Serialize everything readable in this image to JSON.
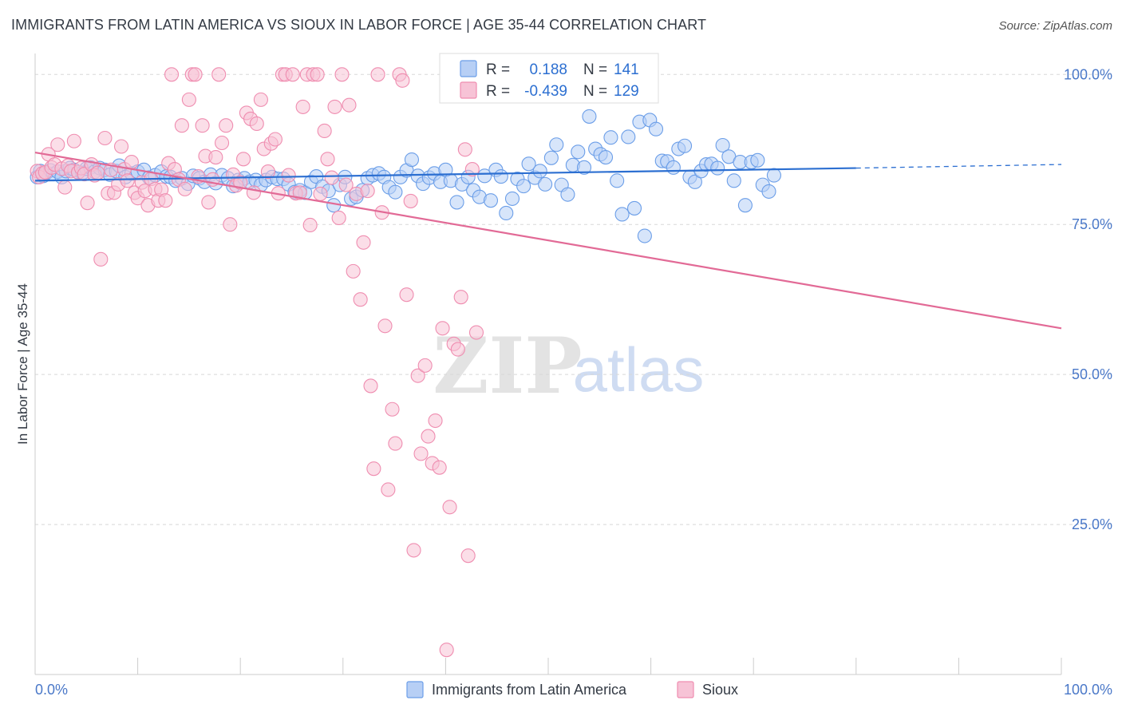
{
  "title": "IMMIGRANTS FROM LATIN AMERICA VS SIOUX IN LABOR FORCE | AGE 35-44 CORRELATION CHART",
  "source": "Source: ZipAtlas.com",
  "watermark": {
    "zip": "ZIP",
    "atlas": "atlas"
  },
  "colors": {
    "blue": "#6b9ee8",
    "blue_fill": "#b7cff5",
    "blue_line": "#2c6fd1",
    "pink": "#ef8db0",
    "pink_fill": "#f7c3d6",
    "pink_line": "#e26a96",
    "tick_text": "#4a78c8",
    "grid": "#d8d8d8"
  },
  "legend": {
    "rows": [
      {
        "r_label": "R =",
        "r_value": "0.188",
        "n_label": "N =",
        "n_value": "141"
      },
      {
        "r_label": "R =",
        "r_value": "-0.439",
        "n_label": "N =",
        "n_value": "129"
      }
    ]
  },
  "chart_data": {
    "type": "scatter",
    "title": "IMMIGRANTS FROM LATIN AMERICA VS SIOUX IN LABOR FORCE | AGE 35-44 CORRELATION CHART",
    "xlabel": "",
    "ylabel": "In Labor Force | Age 35-44",
    "xlim": [
      0,
      100
    ],
    "ylim": [
      0,
      103.5
    ],
    "x_tick_labels": [
      "0.0%",
      "100.0%"
    ],
    "y_ticks": [
      25,
      50,
      75,
      100
    ],
    "y_tick_labels": [
      "25.0%",
      "50.0%",
      "75.0%",
      "100.0%"
    ],
    "grid": "horizontal dashed",
    "legend_position": "top-center",
    "series": [
      {
        "name": "Immigrants from Latin America",
        "color": "#6b9ee8",
        "r": 0.188,
        "n": 141,
        "trend": {
          "x0": 0,
          "y0": 82.3,
          "x1": 80,
          "y1": 84.4,
          "dashed_to": [
            100,
            85.0
          ]
        },
        "points": [
          [
            0.2,
            82.9
          ],
          [
            0.5,
            83.9
          ],
          [
            0.8,
            83.1
          ],
          [
            1.1,
            83.6
          ],
          [
            1.5,
            84.0
          ],
          [
            1.8,
            83.4
          ],
          [
            2.2,
            83.8
          ],
          [
            2.6,
            82.9
          ],
          [
            3.0,
            83.9
          ],
          [
            3.4,
            84.4
          ],
          [
            3.8,
            84.1
          ],
          [
            4.2,
            83.7
          ],
          [
            4.6,
            83.6
          ],
          [
            5.0,
            84.3
          ],
          [
            5.4,
            84.5
          ],
          [
            5.8,
            83.8
          ],
          [
            6.3,
            84.4
          ],
          [
            6.8,
            84.1
          ],
          [
            7.3,
            83.3
          ],
          [
            7.9,
            83.9
          ],
          [
            8.2,
            84.8
          ],
          [
            8.8,
            82.9
          ],
          [
            9.4,
            83.5
          ],
          [
            10.0,
            83.8
          ],
          [
            10.6,
            84.1
          ],
          [
            11.1,
            82.8
          ],
          [
            11.7,
            83.2
          ],
          [
            12.3,
            83.8
          ],
          [
            12.8,
            83.0
          ],
          [
            13.2,
            82.9
          ],
          [
            13.7,
            82.3
          ],
          [
            14.3,
            82.7
          ],
          [
            14.9,
            81.8
          ],
          [
            15.4,
            83.1
          ],
          [
            16.0,
            82.7
          ],
          [
            16.5,
            82.1
          ],
          [
            17.1,
            83.3
          ],
          [
            17.6,
            81.9
          ],
          [
            18.2,
            83.2
          ],
          [
            18.8,
            82.7
          ],
          [
            19.3,
            81.4
          ],
          [
            19.8,
            82.4
          ],
          [
            20.4,
            82.7
          ],
          [
            20.9,
            82.1
          ],
          [
            21.5,
            82.4
          ],
          [
            22.0,
            81.6
          ],
          [
            22.5,
            82.4
          ],
          [
            23.1,
            82.9
          ],
          [
            23.6,
            82.6
          ],
          [
            24.2,
            82.6
          ],
          [
            24.7,
            81.7
          ],
          [
            25.3,
            80.4
          ],
          [
            25.8,
            80.7
          ],
          [
            26.3,
            80.3
          ],
          [
            26.9,
            82.1
          ],
          [
            27.4,
            83.0
          ],
          [
            28.0,
            81.3
          ],
          [
            28.6,
            80.6
          ],
          [
            29.1,
            78.2
          ],
          [
            29.7,
            81.6
          ],
          [
            30.2,
            82.9
          ],
          [
            30.8,
            79.3
          ],
          [
            31.3,
            79.6
          ],
          [
            31.9,
            80.7
          ],
          [
            32.4,
            82.7
          ],
          [
            32.9,
            83.2
          ],
          [
            33.5,
            83.5
          ],
          [
            34.0,
            82.9
          ],
          [
            34.5,
            81.2
          ],
          [
            35.1,
            80.4
          ],
          [
            35.6,
            82.9
          ],
          [
            36.2,
            84.0
          ],
          [
            36.7,
            85.8
          ],
          [
            37.3,
            83.1
          ],
          [
            37.8,
            81.8
          ],
          [
            38.4,
            82.8
          ],
          [
            38.9,
            83.5
          ],
          [
            39.5,
            82.1
          ],
          [
            40.0,
            84.1
          ],
          [
            40.5,
            82.3
          ],
          [
            41.1,
            78.7
          ],
          [
            41.6,
            81.7
          ],
          [
            42.2,
            82.9
          ],
          [
            42.7,
            80.7
          ],
          [
            43.3,
            79.6
          ],
          [
            43.8,
            83.1
          ],
          [
            44.4,
            79.0
          ],
          [
            44.9,
            84.1
          ],
          [
            45.4,
            83.0
          ],
          [
            45.9,
            76.9
          ],
          [
            46.5,
            79.3
          ],
          [
            47.0,
            82.6
          ],
          [
            47.6,
            81.4
          ],
          [
            48.1,
            85.1
          ],
          [
            48.7,
            82.8
          ],
          [
            49.2,
            83.9
          ],
          [
            49.7,
            81.7
          ],
          [
            50.3,
            86.1
          ],
          [
            50.8,
            88.3
          ],
          [
            51.3,
            81.6
          ],
          [
            51.9,
            80.0
          ],
          [
            52.4,
            84.9
          ],
          [
            52.9,
            87.1
          ],
          [
            53.5,
            84.5
          ],
          [
            54.0,
            93.0
          ],
          [
            54.6,
            87.6
          ],
          [
            55.1,
            86.7
          ],
          [
            55.6,
            86.2
          ],
          [
            56.1,
            89.5
          ],
          [
            56.7,
            82.3
          ],
          [
            57.2,
            76.7
          ],
          [
            57.8,
            89.6
          ],
          [
            58.4,
            77.7
          ],
          [
            58.9,
            92.1
          ],
          [
            59.4,
            73.1
          ],
          [
            59.9,
            92.4
          ],
          [
            60.5,
            90.9
          ],
          [
            61.1,
            85.6
          ],
          [
            61.6,
            85.5
          ],
          [
            62.2,
            84.5
          ],
          [
            62.7,
            87.6
          ],
          [
            63.3,
            88.1
          ],
          [
            63.8,
            82.9
          ],
          [
            64.3,
            82.1
          ],
          [
            64.9,
            83.9
          ],
          [
            65.4,
            85.0
          ],
          [
            65.9,
            85.1
          ],
          [
            66.5,
            84.4
          ],
          [
            67.0,
            88.2
          ],
          [
            67.6,
            86.3
          ],
          [
            68.1,
            82.3
          ],
          [
            68.7,
            85.4
          ],
          [
            69.2,
            78.2
          ],
          [
            69.8,
            85.4
          ],
          [
            70.4,
            85.7
          ],
          [
            70.9,
            81.6
          ],
          [
            71.5,
            80.5
          ],
          [
            72.0,
            83.2
          ]
        ]
      },
      {
        "name": "Sioux",
        "color": "#ef8db0",
        "r": -0.439,
        "n": 129,
        "trend": {
          "x0": 0,
          "y0": 87.0,
          "x1": 100,
          "y1": 57.7
        },
        "points": [
          [
            0.2,
            83.9
          ],
          [
            0.4,
            82.9
          ],
          [
            0.7,
            83.5
          ],
          [
            1.0,
            83.7
          ],
          [
            1.3,
            86.7
          ],
          [
            1.6,
            84.5
          ],
          [
            1.9,
            85.0
          ],
          [
            2.2,
            88.3
          ],
          [
            2.6,
            84.3
          ],
          [
            2.9,
            81.2
          ],
          [
            3.2,
            84.8
          ],
          [
            3.5,
            83.9
          ],
          [
            3.8,
            88.9
          ],
          [
            4.2,
            83.7
          ],
          [
            4.5,
            84.4
          ],
          [
            4.8,
            83.4
          ],
          [
            5.1,
            78.6
          ],
          [
            5.5,
            85.0
          ],
          [
            5.8,
            83.2
          ],
          [
            6.1,
            83.6
          ],
          [
            6.4,
            69.2
          ],
          [
            6.8,
            89.4
          ],
          [
            7.1,
            80.2
          ],
          [
            7.4,
            84.1
          ],
          [
            7.7,
            80.3
          ],
          [
            8.1,
            81.7
          ],
          [
            8.4,
            88.0
          ],
          [
            8.7,
            84.2
          ],
          [
            9.0,
            82.3
          ],
          [
            9.4,
            85.4
          ],
          [
            9.7,
            80.3
          ],
          [
            10.0,
            79.4
          ],
          [
            10.4,
            82.0
          ],
          [
            10.7,
            80.6
          ],
          [
            11.0,
            78.2
          ],
          [
            11.3,
            82.6
          ],
          [
            11.7,
            80.9
          ],
          [
            12.0,
            79.0
          ],
          [
            12.3,
            80.8
          ],
          [
            12.7,
            79.0
          ],
          [
            13.0,
            85.2
          ],
          [
            13.3,
            100.0
          ],
          [
            13.6,
            84.2
          ],
          [
            14.0,
            82.5
          ],
          [
            14.3,
            91.5
          ],
          [
            14.6,
            80.9
          ],
          [
            15.0,
            95.8
          ],
          [
            15.3,
            100.0
          ],
          [
            15.6,
            100.0
          ],
          [
            15.9,
            83.0
          ],
          [
            16.3,
            91.5
          ],
          [
            16.6,
            86.4
          ],
          [
            16.9,
            78.7
          ],
          [
            17.3,
            82.5
          ],
          [
            17.6,
            86.2
          ],
          [
            17.9,
            100.0
          ],
          [
            18.2,
            88.6
          ],
          [
            18.6,
            91.5
          ],
          [
            19.0,
            75.0
          ],
          [
            19.3,
            83.3
          ],
          [
            19.6,
            81.5
          ],
          [
            20.0,
            82.0
          ],
          [
            20.3,
            85.9
          ],
          [
            20.6,
            93.6
          ],
          [
            21.0,
            92.6
          ],
          [
            21.3,
            80.3
          ],
          [
            21.6,
            91.8
          ],
          [
            22.0,
            95.8
          ],
          [
            22.3,
            87.6
          ],
          [
            22.7,
            83.8
          ],
          [
            23.0,
            88.5
          ],
          [
            23.4,
            89.2
          ],
          [
            23.7,
            80.2
          ],
          [
            24.1,
            100.0
          ],
          [
            24.4,
            100.0
          ],
          [
            24.7,
            83.2
          ],
          [
            25.1,
            100.0
          ],
          [
            25.4,
            80.2
          ],
          [
            25.8,
            80.3
          ],
          [
            26.1,
            94.6
          ],
          [
            26.5,
            100.0
          ],
          [
            26.8,
            74.9
          ],
          [
            27.1,
            100.0
          ],
          [
            27.5,
            100.0
          ],
          [
            27.8,
            80.1
          ],
          [
            28.2,
            90.6
          ],
          [
            28.5,
            85.9
          ],
          [
            28.9,
            82.8
          ],
          [
            29.2,
            94.6
          ],
          [
            29.6,
            76.1
          ],
          [
            29.9,
            100.0
          ],
          [
            30.3,
            81.6
          ],
          [
            30.6,
            94.9
          ],
          [
            31.0,
            67.2
          ],
          [
            31.3,
            80.1
          ],
          [
            31.7,
            62.5
          ],
          [
            32.0,
            72.0
          ],
          [
            32.4,
            80.6
          ],
          [
            32.7,
            48.1
          ],
          [
            33.0,
            34.3
          ],
          [
            33.4,
            100.0
          ],
          [
            33.8,
            77.0
          ],
          [
            34.1,
            58.1
          ],
          [
            34.4,
            30.8
          ],
          [
            34.8,
            44.2
          ],
          [
            35.1,
            38.5
          ],
          [
            35.5,
            100.0
          ],
          [
            35.8,
            99.0
          ],
          [
            36.2,
            63.3
          ],
          [
            36.6,
            78.9
          ],
          [
            36.9,
            20.7
          ],
          [
            37.3,
            49.8
          ],
          [
            37.6,
            36.8
          ],
          [
            38.0,
            51.5
          ],
          [
            38.3,
            39.7
          ],
          [
            38.7,
            35.2
          ],
          [
            39.0,
            42.3
          ],
          [
            39.4,
            34.5
          ],
          [
            39.7,
            57.7
          ],
          [
            40.1,
            4.1
          ],
          [
            40.4,
            27.9
          ],
          [
            40.8,
            55.1
          ],
          [
            41.2,
            54.2
          ],
          [
            41.5,
            62.9
          ],
          [
            41.9,
            87.5
          ],
          [
            42.2,
            19.8
          ],
          [
            42.6,
            84.2
          ],
          [
            43.0,
            57.0
          ]
        ]
      }
    ]
  },
  "bottom_legend": [
    {
      "label": "Immigrants from Latin America"
    },
    {
      "label": "Sioux"
    }
  ]
}
